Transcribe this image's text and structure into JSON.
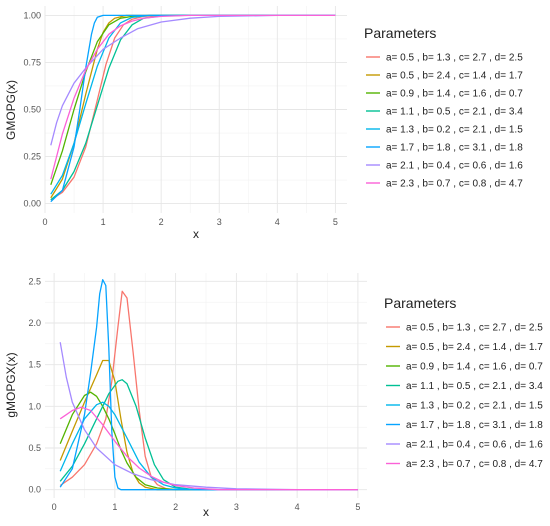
{
  "chart_data": [
    {
      "type": "line",
      "xlabel": "x",
      "ylabel": "GMOPG(x)",
      "xlim": [
        0,
        5.2
      ],
      "ylim": [
        -0.05,
        1.05
      ],
      "xticks": [
        0,
        1,
        2,
        3,
        4,
        5
      ],
      "yticks": [
        0.0,
        0.25,
        0.5,
        0.75,
        1.0
      ],
      "ytick_labels": [
        "0.00",
        "0.25",
        "0.50",
        "0.75",
        "1.00"
      ],
      "grid": true,
      "legend_title": "Parameters",
      "legend_position": "right",
      "series": [
        {
          "name": "a= 0.5 , b= 1.3 , c= 2.7 , d= 2.5",
          "color": "#F8766D",
          "x": [
            0.1,
            0.3,
            0.5,
            0.7,
            0.9,
            1.05,
            1.2,
            1.35,
            1.5,
            1.7,
            2.0,
            5.0
          ],
          "y": [
            0.02,
            0.06,
            0.14,
            0.3,
            0.55,
            0.74,
            0.88,
            0.95,
            0.98,
            0.995,
            1.0,
            1.0
          ]
        },
        {
          "name": "a= 0.5 , b= 2.4 , c= 1.4 , d= 1.7",
          "color": "#C49A00",
          "x": [
            0.1,
            0.3,
            0.5,
            0.7,
            0.9,
            1.0,
            1.1,
            1.2,
            1.4,
            1.7,
            5.0
          ],
          "y": [
            0.03,
            0.13,
            0.32,
            0.58,
            0.82,
            0.91,
            0.96,
            0.985,
            1.0,
            1.0,
            1.0
          ]
        },
        {
          "name": "a= 0.9 , b= 1.4 , c= 1.6 , d= 0.7",
          "color": "#53B400",
          "x": [
            0.1,
            0.3,
            0.5,
            0.7,
            0.9,
            1.1,
            1.3,
            1.5,
            1.8,
            5.0
          ],
          "y": [
            0.1,
            0.28,
            0.5,
            0.7,
            0.86,
            0.95,
            0.985,
            0.995,
            1.0,
            1.0
          ]
        },
        {
          "name": "a= 1.1 , b= 0.5 , c= 2.1 , d= 3.4",
          "color": "#00C094",
          "x": [
            0.1,
            0.3,
            0.5,
            0.7,
            0.9,
            1.1,
            1.3,
            1.5,
            1.7,
            2.0,
            2.4,
            5.0
          ],
          "y": [
            0.02,
            0.07,
            0.17,
            0.32,
            0.52,
            0.72,
            0.87,
            0.95,
            0.985,
            0.997,
            1.0,
            1.0
          ]
        },
        {
          "name": "a= 1.3 , b= 0.2 , c= 2.1 , d= 1.5",
          "color": "#00B6EB",
          "x": [
            0.1,
            0.3,
            0.5,
            0.7,
            0.9,
            1.1,
            1.3,
            1.5,
            1.8,
            2.2,
            5.0
          ],
          "y": [
            0.05,
            0.15,
            0.32,
            0.53,
            0.73,
            0.88,
            0.96,
            0.99,
            1.0,
            1.0,
            1.0
          ]
        },
        {
          "name": "a= 1.7 , b= 1.8 , c= 3.1 , d= 1.8",
          "color": "#06A4FF",
          "x": [
            0.1,
            0.3,
            0.5,
            0.6,
            0.7,
            0.8,
            0.85,
            0.9,
            1.0,
            1.2,
            5.0
          ],
          "y": [
            0.01,
            0.07,
            0.3,
            0.5,
            0.72,
            0.9,
            0.96,
            0.99,
            1.0,
            1.0,
            1.0
          ]
        },
        {
          "name": "a= 2.1 , b= 0.4 , c= 0.6 , d= 1.6",
          "color": "#A58AFF",
          "x": [
            0.1,
            0.2,
            0.3,
            0.5,
            0.7,
            1.0,
            1.3,
            1.6,
            2.0,
            2.5,
            3.0,
            4.0,
            5.0
          ],
          "y": [
            0.31,
            0.43,
            0.52,
            0.64,
            0.72,
            0.82,
            0.88,
            0.93,
            0.965,
            0.985,
            0.995,
            1.0,
            1.0
          ]
        },
        {
          "name": "a= 2.3 , b= 0.7 , c= 0.8 , d= 4.7",
          "color": "#FB61D7",
          "x": [
            0.1,
            0.3,
            0.5,
            0.7,
            0.9,
            1.1,
            1.3,
            1.5,
            1.7,
            2.0,
            2.5,
            5.0
          ],
          "y": [
            0.13,
            0.37,
            0.56,
            0.71,
            0.82,
            0.9,
            0.945,
            0.97,
            0.985,
            0.995,
            1.0,
            1.0
          ]
        }
      ]
    },
    {
      "type": "line",
      "xlabel": "x",
      "ylabel": "gMOPGX(x)",
      "xlim": [
        -0.15,
        5.15
      ],
      "ylim": [
        -0.1,
        2.6
      ],
      "xticks": [
        0,
        1,
        2,
        3,
        4,
        5
      ],
      "yticks": [
        0.0,
        0.5,
        1.0,
        1.5,
        2.0,
        2.5
      ],
      "ytick_labels": [
        "0.0",
        "0.5",
        "1.0",
        "1.5",
        "2.0",
        "2.5"
      ],
      "grid": true,
      "legend_title": "Parameters",
      "legend_position": "right",
      "series": [
        {
          "name": "a= 0.5 , b= 1.3 , c= 2.7 , d= 2.5",
          "color": "#F8766D",
          "x": [
            0.1,
            0.3,
            0.5,
            0.7,
            0.85,
            0.95,
            1.05,
            1.12,
            1.2,
            1.3,
            1.4,
            1.5,
            1.6,
            1.7,
            1.85,
            2.0,
            5.0
          ],
          "y": [
            0.05,
            0.15,
            0.3,
            0.55,
            0.85,
            1.3,
            1.95,
            2.38,
            2.3,
            1.65,
            0.95,
            0.4,
            0.15,
            0.06,
            0.01,
            0.0,
            0.0
          ]
        },
        {
          "name": "a= 0.5 , b= 2.4 , c= 1.4 , d= 1.7",
          "color": "#C49A00",
          "x": [
            0.1,
            0.3,
            0.5,
            0.7,
            0.8,
            0.9,
            1.0,
            1.1,
            1.2,
            1.3,
            1.4,
            1.5,
            1.7,
            5.0
          ],
          "y": [
            0.35,
            0.7,
            1.05,
            1.38,
            1.55,
            1.55,
            1.3,
            0.85,
            0.45,
            0.2,
            0.08,
            0.03,
            0.0,
            0.0
          ]
        },
        {
          "name": "a= 0.9 , b= 1.4 , c= 1.6 , d= 0.7",
          "color": "#53B400",
          "x": [
            0.1,
            0.3,
            0.5,
            0.6,
            0.7,
            0.8,
            0.9,
            1.0,
            1.1,
            1.2,
            1.35,
            1.5,
            1.7,
            2.0,
            5.0
          ],
          "y": [
            0.55,
            0.9,
            1.13,
            1.17,
            1.12,
            1.0,
            0.85,
            0.67,
            0.48,
            0.32,
            0.15,
            0.06,
            0.02,
            0.0,
            0.0
          ]
        },
        {
          "name": "a= 1.1 , b= 0.5 , c= 2.1 , d= 3.4",
          "color": "#00C094",
          "x": [
            0.1,
            0.3,
            0.5,
            0.7,
            0.9,
            1.05,
            1.12,
            1.2,
            1.35,
            1.5,
            1.65,
            1.8,
            2.0,
            2.3,
            5.0
          ],
          "y": [
            0.1,
            0.28,
            0.55,
            0.85,
            1.15,
            1.3,
            1.32,
            1.27,
            1.0,
            0.62,
            0.3,
            0.12,
            0.03,
            0.0,
            0.0
          ]
        },
        {
          "name": "a= 1.3 , b= 0.2 , c= 2.1 , d= 1.5",
          "color": "#00B6EB",
          "x": [
            0.1,
            0.3,
            0.5,
            0.7,
            0.8,
            0.9,
            1.0,
            1.2,
            1.4,
            1.6,
            1.8,
            2.0,
            2.2,
            2.5,
            5.0
          ],
          "y": [
            0.22,
            0.55,
            0.85,
            1.02,
            1.05,
            1.0,
            0.9,
            0.62,
            0.33,
            0.15,
            0.06,
            0.02,
            0.005,
            0.0,
            0.0
          ]
        },
        {
          "name": "a= 1.7 , b= 1.8 , c= 3.1 , d= 1.8",
          "color": "#06A4FF",
          "x": [
            0.1,
            0.3,
            0.5,
            0.6,
            0.7,
            0.75,
            0.8,
            0.85,
            0.9,
            0.95,
            1.0,
            1.05,
            1.1,
            5.0
          ],
          "y": [
            0.03,
            0.25,
            0.9,
            1.4,
            1.95,
            2.35,
            2.52,
            2.45,
            1.7,
            0.7,
            0.15,
            0.02,
            0.0,
            0.0
          ]
        },
        {
          "name": "a= 2.1 , b= 0.4 , c= 0.6 , d= 1.6",
          "color": "#A58AFF",
          "x": [
            0.1,
            0.2,
            0.3,
            0.5,
            0.7,
            1.0,
            1.3,
            1.6,
            2.0,
            2.5,
            3.0,
            4.0,
            5.0
          ],
          "y": [
            1.77,
            1.35,
            1.05,
            0.72,
            0.5,
            0.3,
            0.19,
            0.12,
            0.06,
            0.03,
            0.01,
            0.0,
            0.0
          ]
        },
        {
          "name": "a= 2.3 , b= 0.7 , c= 0.8 , d= 4.7",
          "color": "#FB61D7",
          "x": [
            0.1,
            0.2,
            0.3,
            0.45,
            0.6,
            0.8,
            1.0,
            1.2,
            1.4,
            1.6,
            1.8,
            2.0,
            2.3,
            2.7,
            5.0
          ],
          "y": [
            0.85,
            0.9,
            0.95,
            0.99,
            0.95,
            0.78,
            0.58,
            0.4,
            0.26,
            0.16,
            0.09,
            0.05,
            0.02,
            0.0,
            0.0
          ]
        }
      ]
    }
  ]
}
